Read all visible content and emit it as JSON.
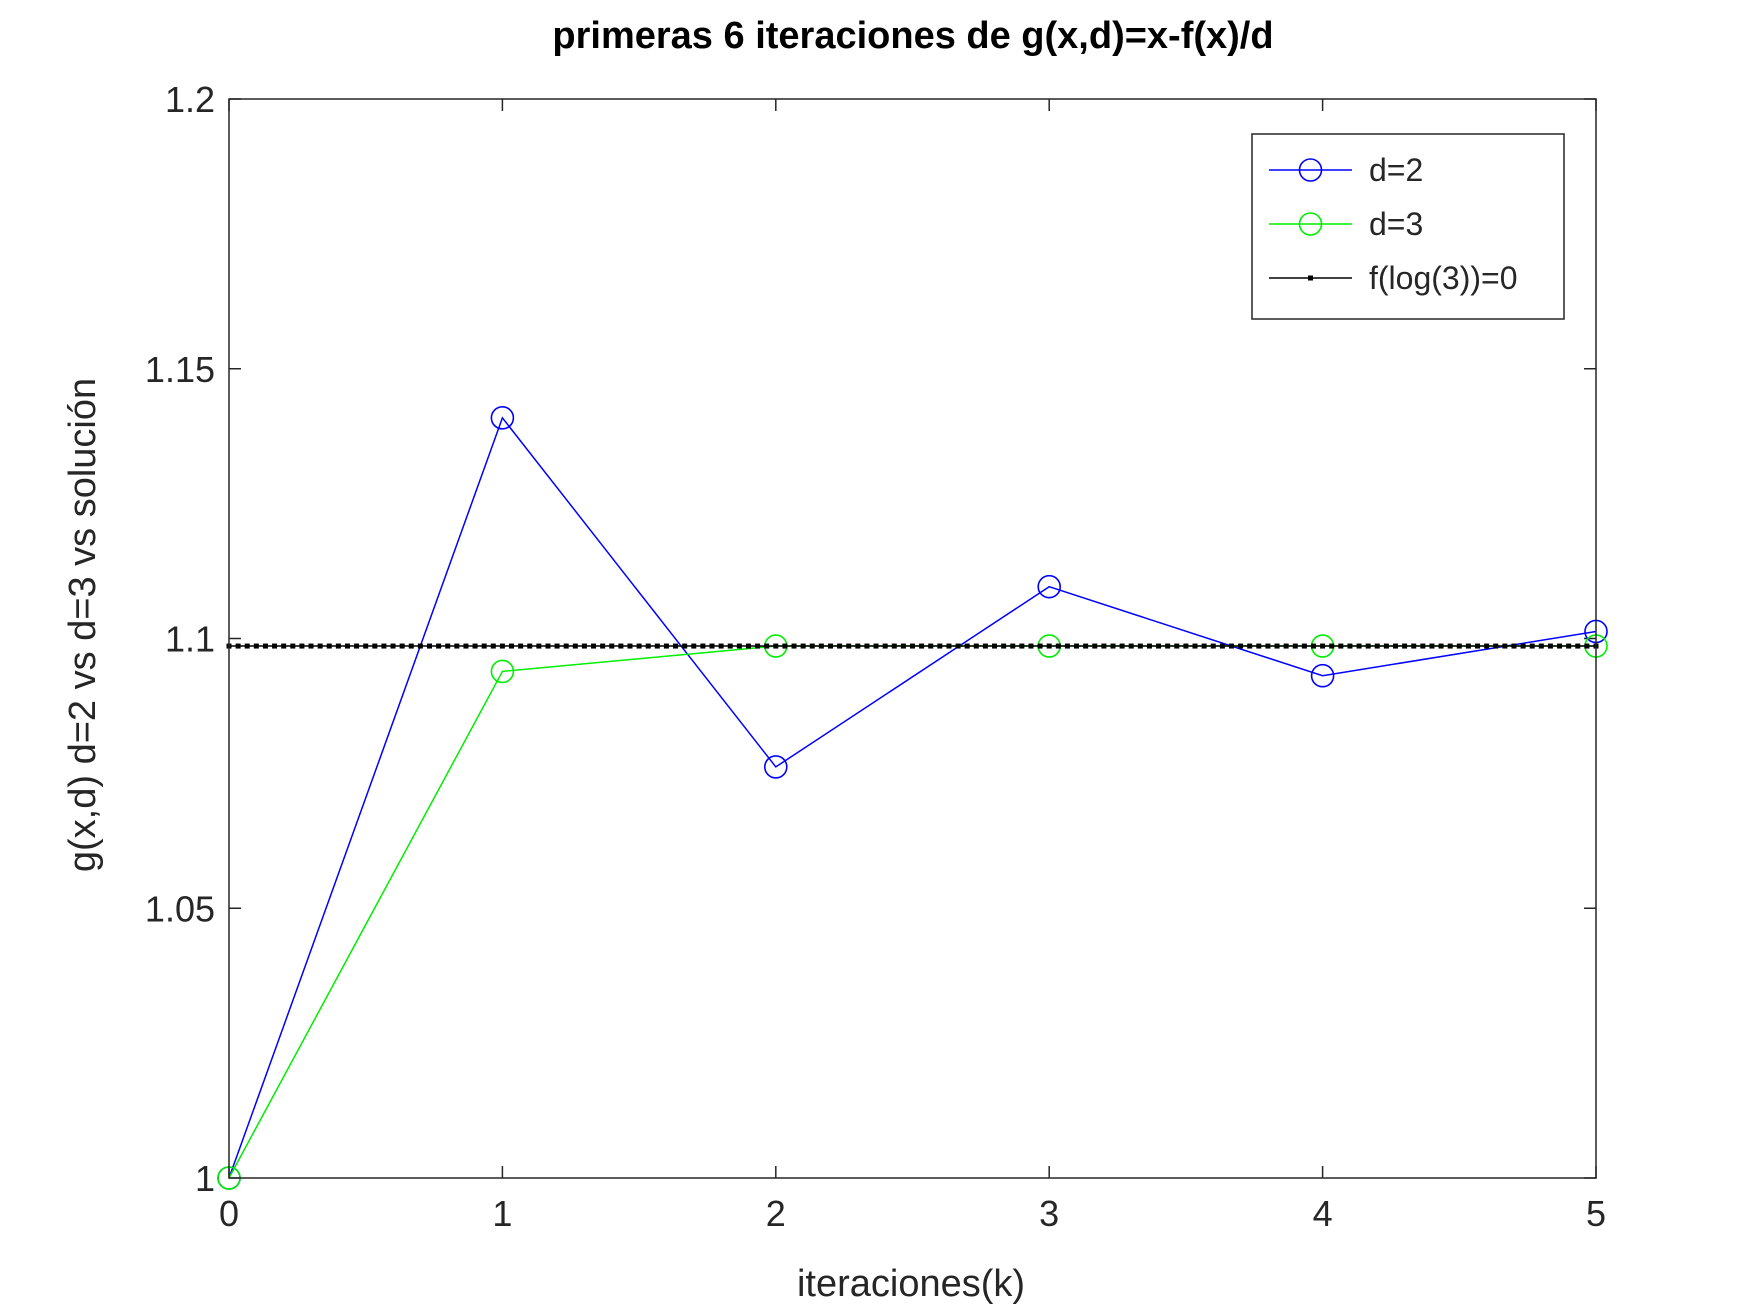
{
  "chart_data": {
    "type": "line",
    "title": "primeras 6 iteraciones de g(x,d)=x-f(x)/d",
    "xlabel": "iteraciones(k)",
    "ylabel": "g(x,d) d=2 vs d=3 vs solución",
    "xlim": [
      0,
      5
    ],
    "ylim": [
      1,
      1.2
    ],
    "xticks": [
      0,
      1,
      2,
      3,
      4,
      5
    ],
    "xtick_labels": [
      "0",
      "1",
      "2",
      "3",
      "4",
      "5"
    ],
    "yticks": [
      1,
      1.05,
      1.1,
      1.15,
      1.2
    ],
    "ytick_labels": [
      "1",
      "1.05",
      "1.1",
      "1.15",
      "1.2"
    ],
    "grid": false,
    "legend_position": "top-right",
    "x": [
      0,
      1,
      2,
      3,
      4,
      5
    ],
    "series": [
      {
        "name": "d=2",
        "color": "#0000ff",
        "marker": "circle",
        "values": [
          1.0,
          1.1409,
          1.0762,
          1.1096,
          1.0931,
          1.1013
        ]
      },
      {
        "name": "d=3",
        "color": "#00ee00",
        "marker": "circle",
        "values": [
          1.0,
          1.0939,
          1.0986,
          1.0986,
          1.0986,
          1.0986
        ]
      },
      {
        "name": "f(log(3))=0",
        "color": "#000000",
        "marker": "dot",
        "constant": 1.0986
      }
    ]
  }
}
